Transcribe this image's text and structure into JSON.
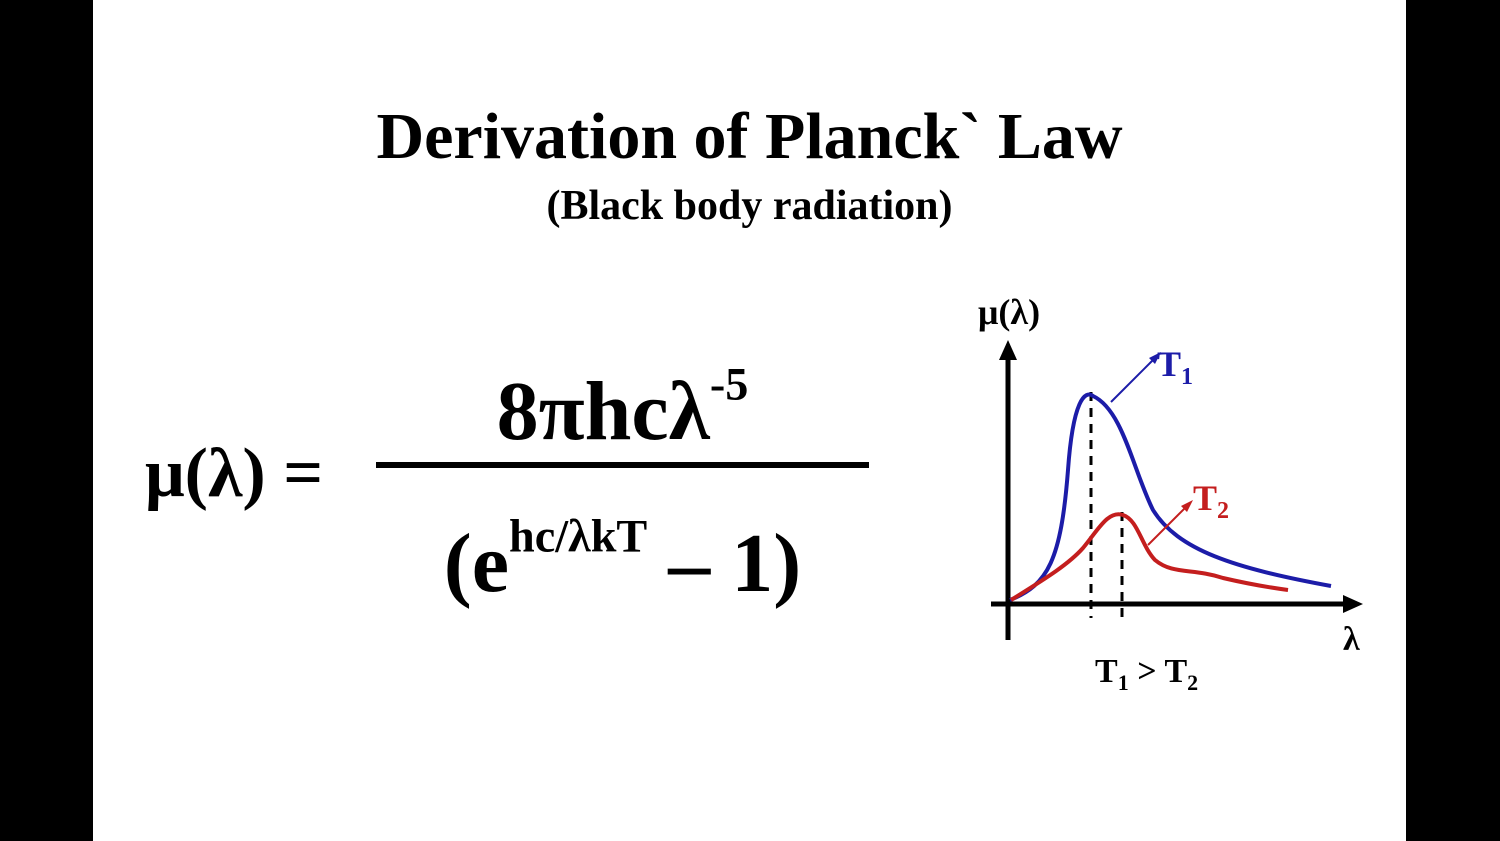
{
  "slide": {
    "title": "Derivation of Planck` Law",
    "subtitle": "(Black body radiation)"
  },
  "equation": {
    "lhs": "μ(λ) =",
    "numerator_base": "8πhcλ",
    "numerator_exp": "-5",
    "denominator_open": "(e",
    "denominator_exp": "hc/λkT",
    "denominator_close": " – 1)"
  },
  "graph": {
    "y_axis_label": "μ(λ)",
    "x_axis_label": "λ",
    "curve_t1": {
      "name": "T",
      "subscript": "1",
      "color": "#1c1ca8"
    },
    "curve_t2": {
      "name": "T",
      "subscript": "2",
      "color": "#c41e1e"
    },
    "condition": {
      "lhs": "T",
      "lhs_sub": "1",
      "op": " > ",
      "rhs": "T",
      "rhs_sub": "2"
    }
  }
}
